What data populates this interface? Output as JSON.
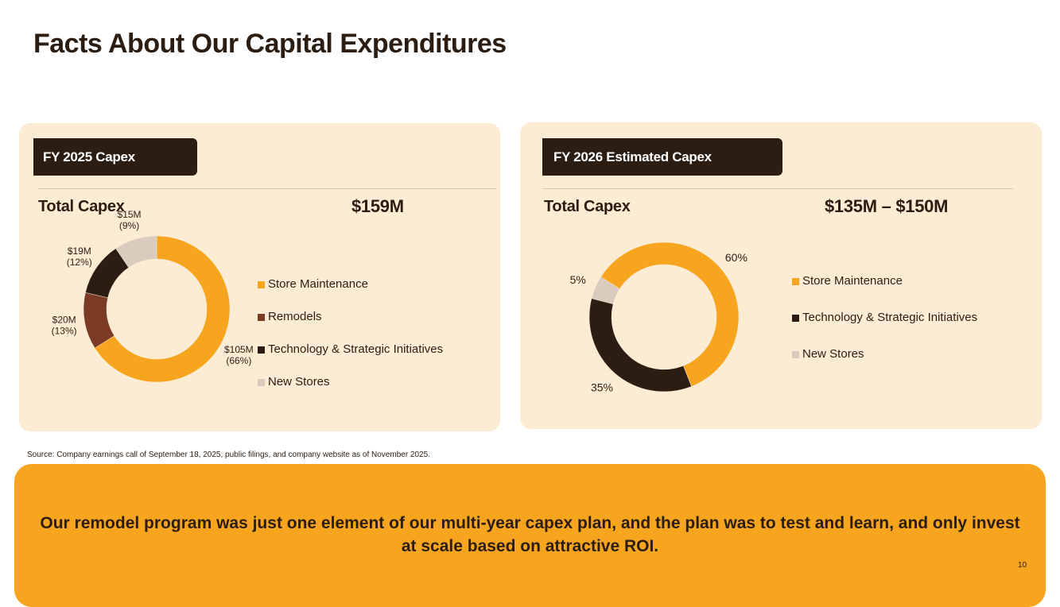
{
  "page": {
    "title": "Facts About Our Capital Expenditures",
    "source_note": "Source: Company earnings call of September 18, 2025, public filings, and company website as of November 2025.",
    "banner_text": "Our remodel program was just one element of our multi-year capex plan, and the plan was to test and learn, and only invest at scale based on attractive ROI.",
    "page_number": "10"
  },
  "colors": {
    "store_maintenance": "#f7a51f",
    "remodels": "#7a3a23",
    "technology": "#2b1d12",
    "new_stores": "#d9cbbd",
    "panel_bg": "#fdecd4",
    "banner_bg": "#f7a51f"
  },
  "left_panel": {
    "tag": "FY 2025 Capex",
    "total_label": "Total Capex",
    "total_value": "$159M"
  },
  "right_panel": {
    "tag": "FY 2026 Estimated Capex",
    "total_label": "Total Capex",
    "total_value": "$135M – $150M"
  },
  "chart_data": [
    {
      "type": "pie",
      "variant": "donut",
      "title": "FY 2025 Capex",
      "categories": [
        "Store Maintenance",
        "Remodels",
        "Technology & Strategic Initiatives",
        "New Stores"
      ],
      "values": [
        105,
        20,
        19,
        15
      ],
      "units": "$M",
      "percent": [
        66,
        13,
        12,
        9
      ],
      "labels": [
        {
          "value": "$105M",
          "pct": "(66%)"
        },
        {
          "value": "$20M",
          "pct": "(13%)"
        },
        {
          "value": "$19M",
          "pct": "(12%)"
        },
        {
          "value": "$15M",
          "pct": "(9%)"
        }
      ],
      "legend": [
        "Store Maintenance",
        "Remodels",
        "Technology & Strategic Initiatives",
        "New Stores"
      ],
      "colors": [
        "#f7a51f",
        "#7a3a23",
        "#2b1d12",
        "#d9cbbd"
      ],
      "legend_position": "right"
    },
    {
      "type": "pie",
      "variant": "donut",
      "title": "FY 2026 Estimated Capex",
      "categories": [
        "Store Maintenance",
        "Technology & Strategic Initiatives",
        "New Stores"
      ],
      "values": [
        60,
        35,
        5
      ],
      "units": "%",
      "labels": [
        "60%",
        "35%",
        "5%"
      ],
      "legend": [
        "Store Maintenance",
        "Technology & Strategic Initiatives",
        "New Stores"
      ],
      "colors": [
        "#f7a51f",
        "#2b1d12",
        "#d9cbbd"
      ],
      "legend_position": "right"
    }
  ]
}
